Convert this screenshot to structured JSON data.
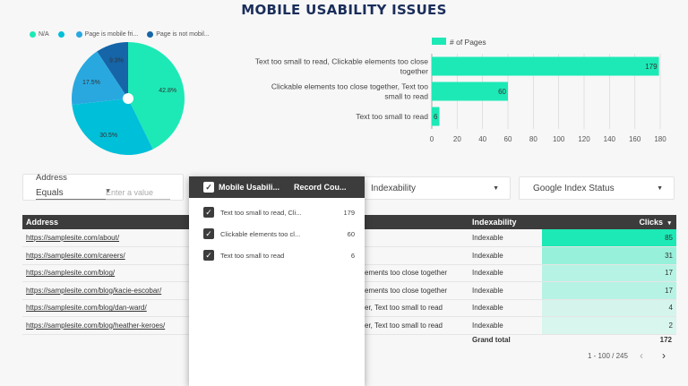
{
  "title": "MOBILE USABILITY ISSUES",
  "pie": {
    "legend": [
      {
        "label": "N/A",
        "color": "#1de9b6"
      },
      {
        "label": "",
        "color": "#00bfd8"
      },
      {
        "label": "Page is mobile fri...",
        "color": "#29a8e0"
      },
      {
        "label": "Page is not mobil...",
        "color": "#1565a8"
      }
    ]
  },
  "chart_data": [
    {
      "type": "pie",
      "labels": [
        "N/A",
        "",
        "Page is mobile friendly",
        "Page is not mobile friendly"
      ],
      "values": [
        42.8,
        30.5,
        17.5,
        9.3
      ],
      "value_labels": [
        "42.8%",
        "30.5%",
        "17.5%",
        "9.3%"
      ],
      "colors": [
        "#1de9b6",
        "#00bfd8",
        "#29a8e0",
        "#1565a8"
      ],
      "donut_hole": true
    },
    {
      "type": "bar",
      "orientation": "horizontal",
      "categories": [
        "Text too small to read, Clickable elements too close together",
        "Clickable elements too close together, Text too small to read",
        "Text too small to read"
      ],
      "category_lines": [
        [
          "Text too small to read, Clickable elements too close",
          "together"
        ],
        [
          "Clickable elements too close together, Text too",
          "small to read"
        ],
        [
          "Text too small to read"
        ]
      ],
      "series": [
        {
          "name": "# of Pages",
          "values": [
            179,
            60,
            6
          ],
          "color": "#1de9b6"
        }
      ],
      "xlim": [
        0,
        180
      ],
      "xticks": [
        0,
        20,
        40,
        60,
        80,
        100,
        120,
        140,
        160,
        180
      ],
      "legend_position": "top",
      "grid": true
    }
  ],
  "filters": {
    "address": {
      "label": "Address",
      "operator": "Equals",
      "placeholder": "Enter a value"
    },
    "indexability": {
      "label": "Indexability"
    },
    "google_index": {
      "label": "Google Index Status"
    }
  },
  "popup": {
    "col1": "Mobile Usabili...",
    "col2": "Record Cou...",
    "rows": [
      {
        "label": "Text too small to read, Cli...",
        "count": "179"
      },
      {
        "label": "Clickable elements too cl...",
        "count": "60"
      },
      {
        "label": "Text too small to read",
        "count": "6"
      }
    ]
  },
  "table": {
    "headers": {
      "address": "Address",
      "issue": "",
      "indexability": "Indexability",
      "clicks": "Clicks"
    },
    "sort_arrow": "▾",
    "rows": [
      {
        "url": "https://samplesite.com/about/",
        "issue": "",
        "index": "Indexable",
        "clicks": "85",
        "pct": 1.0
      },
      {
        "url": "https://samplesite.com/careers/",
        "issue": "",
        "index": "Indexable",
        "clicks": "31",
        "pct": 0.365
      },
      {
        "url": "https://samplesite.com/blog/",
        "issue": "ements too close together",
        "index": "Indexable",
        "clicks": "17",
        "pct": 0.2
      },
      {
        "url": "https://samplesite.com/blog/kacie-escobar/",
        "issue": "ements too close together",
        "index": "Indexable",
        "clicks": "17",
        "pct": 0.2
      },
      {
        "url": "https://samplesite.com/blog/dan-ward/",
        "issue": "er, Text too small to read",
        "index": "Indexable",
        "clicks": "4",
        "pct": 0.047
      },
      {
        "url": "https://samplesite.com/blog/heather-keroes/",
        "issue": "er, Text too small to read",
        "index": "Indexable",
        "clicks": "2",
        "pct": 0.024
      }
    ],
    "grand_total_label": "Grand total",
    "grand_total": "172",
    "pager": "1 - 100 / 245"
  }
}
